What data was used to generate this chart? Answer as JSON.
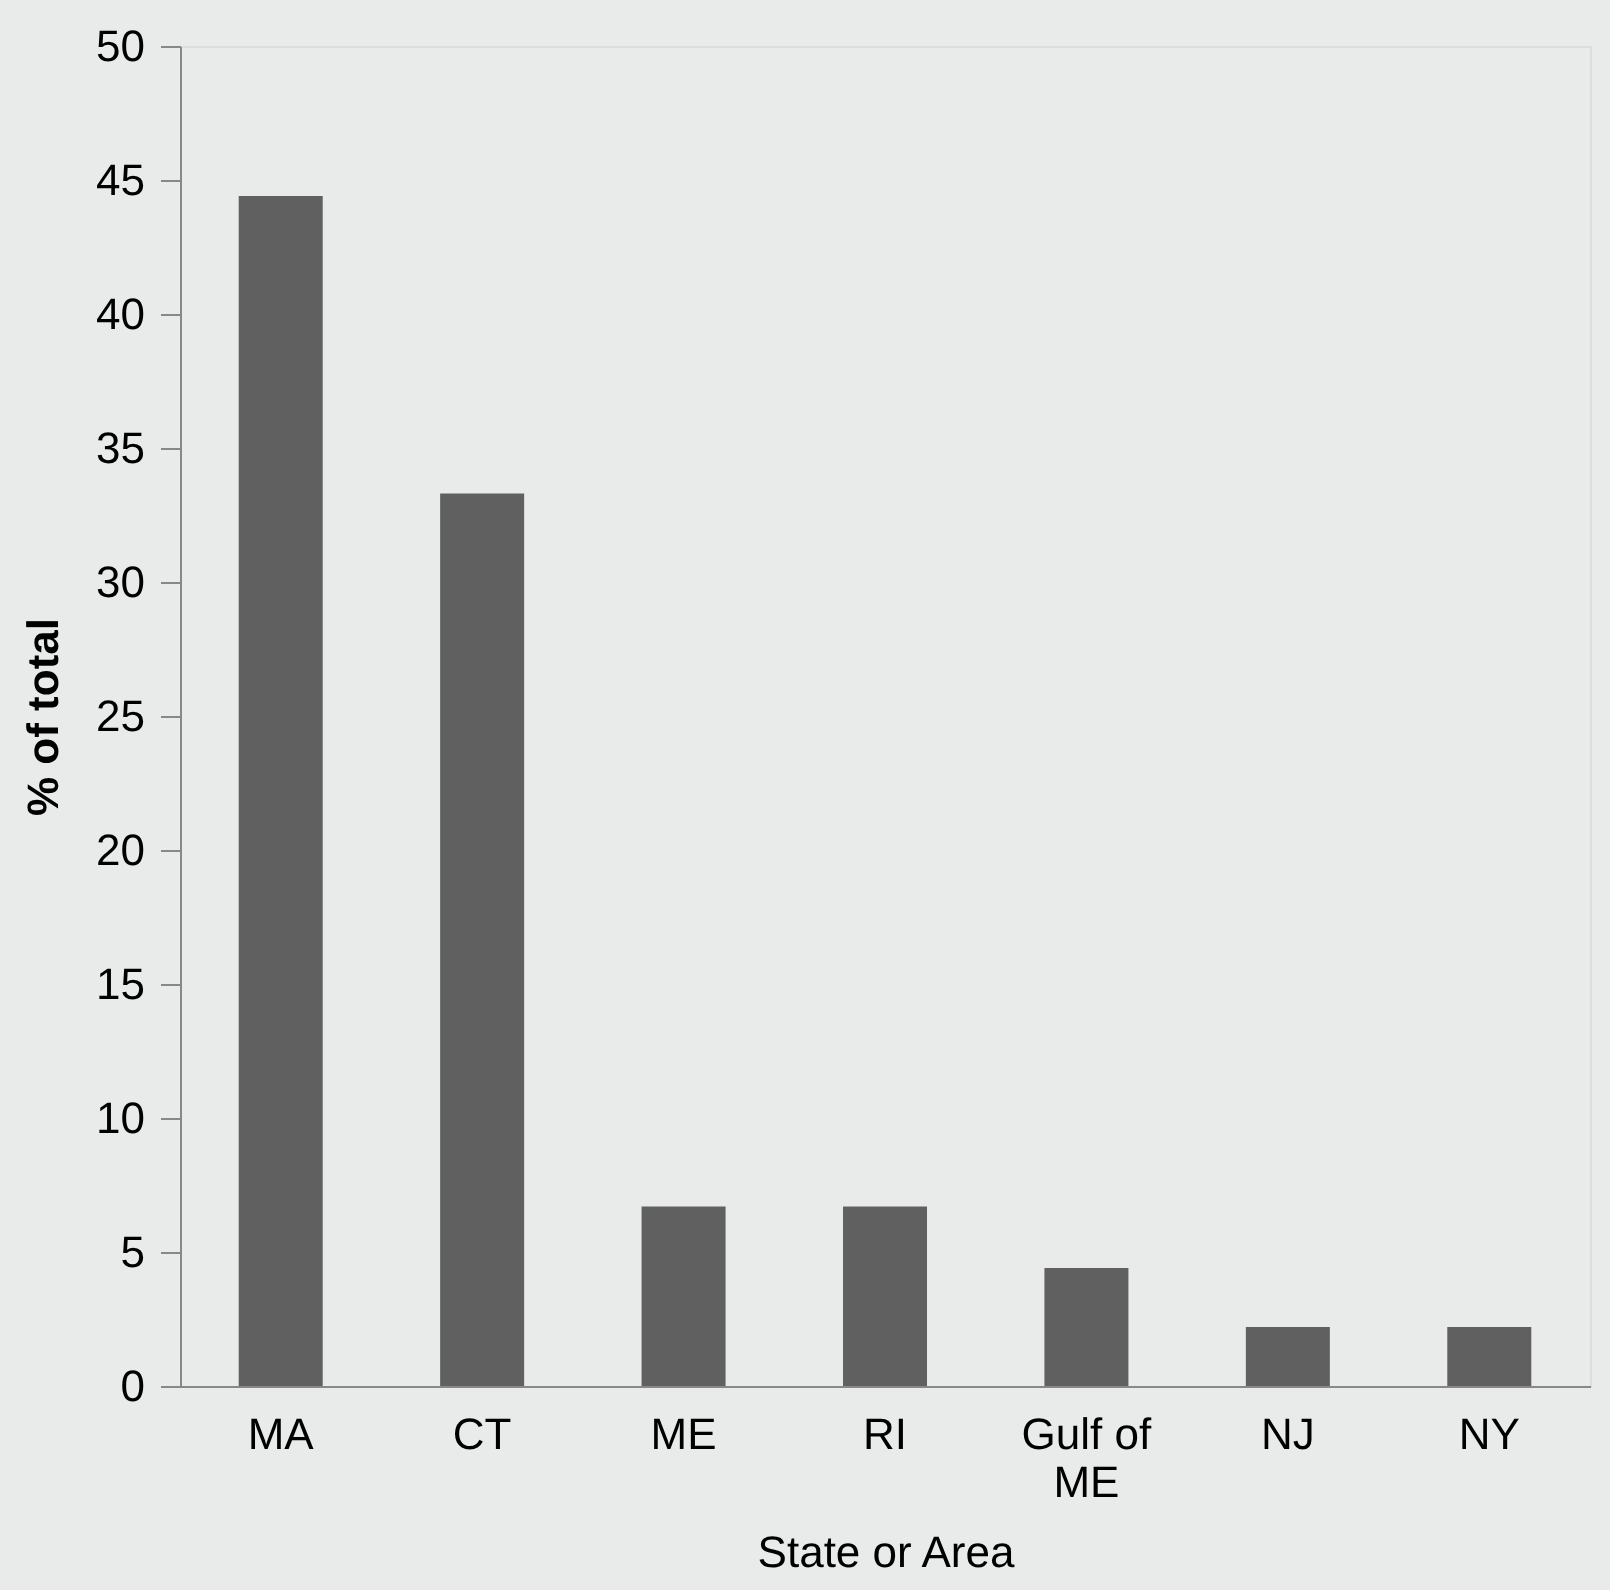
{
  "chart_data": {
    "type": "bar",
    "xlabel": "State or Area",
    "ylabel": "% of total",
    "categories": [
      "MA",
      "CT",
      "ME",
      "RI",
      "Gulf of ME",
      "NJ",
      "NY"
    ],
    "values": [
      44.4,
      33.3,
      6.7,
      6.7,
      4.4,
      2.2,
      2.2
    ],
    "color": "#606060",
    "ylim": [
      0,
      50
    ],
    "yticks": [
      0,
      5,
      10,
      15,
      20,
      25,
      30,
      35,
      40,
      45,
      50
    ],
    "grid": false
  }
}
